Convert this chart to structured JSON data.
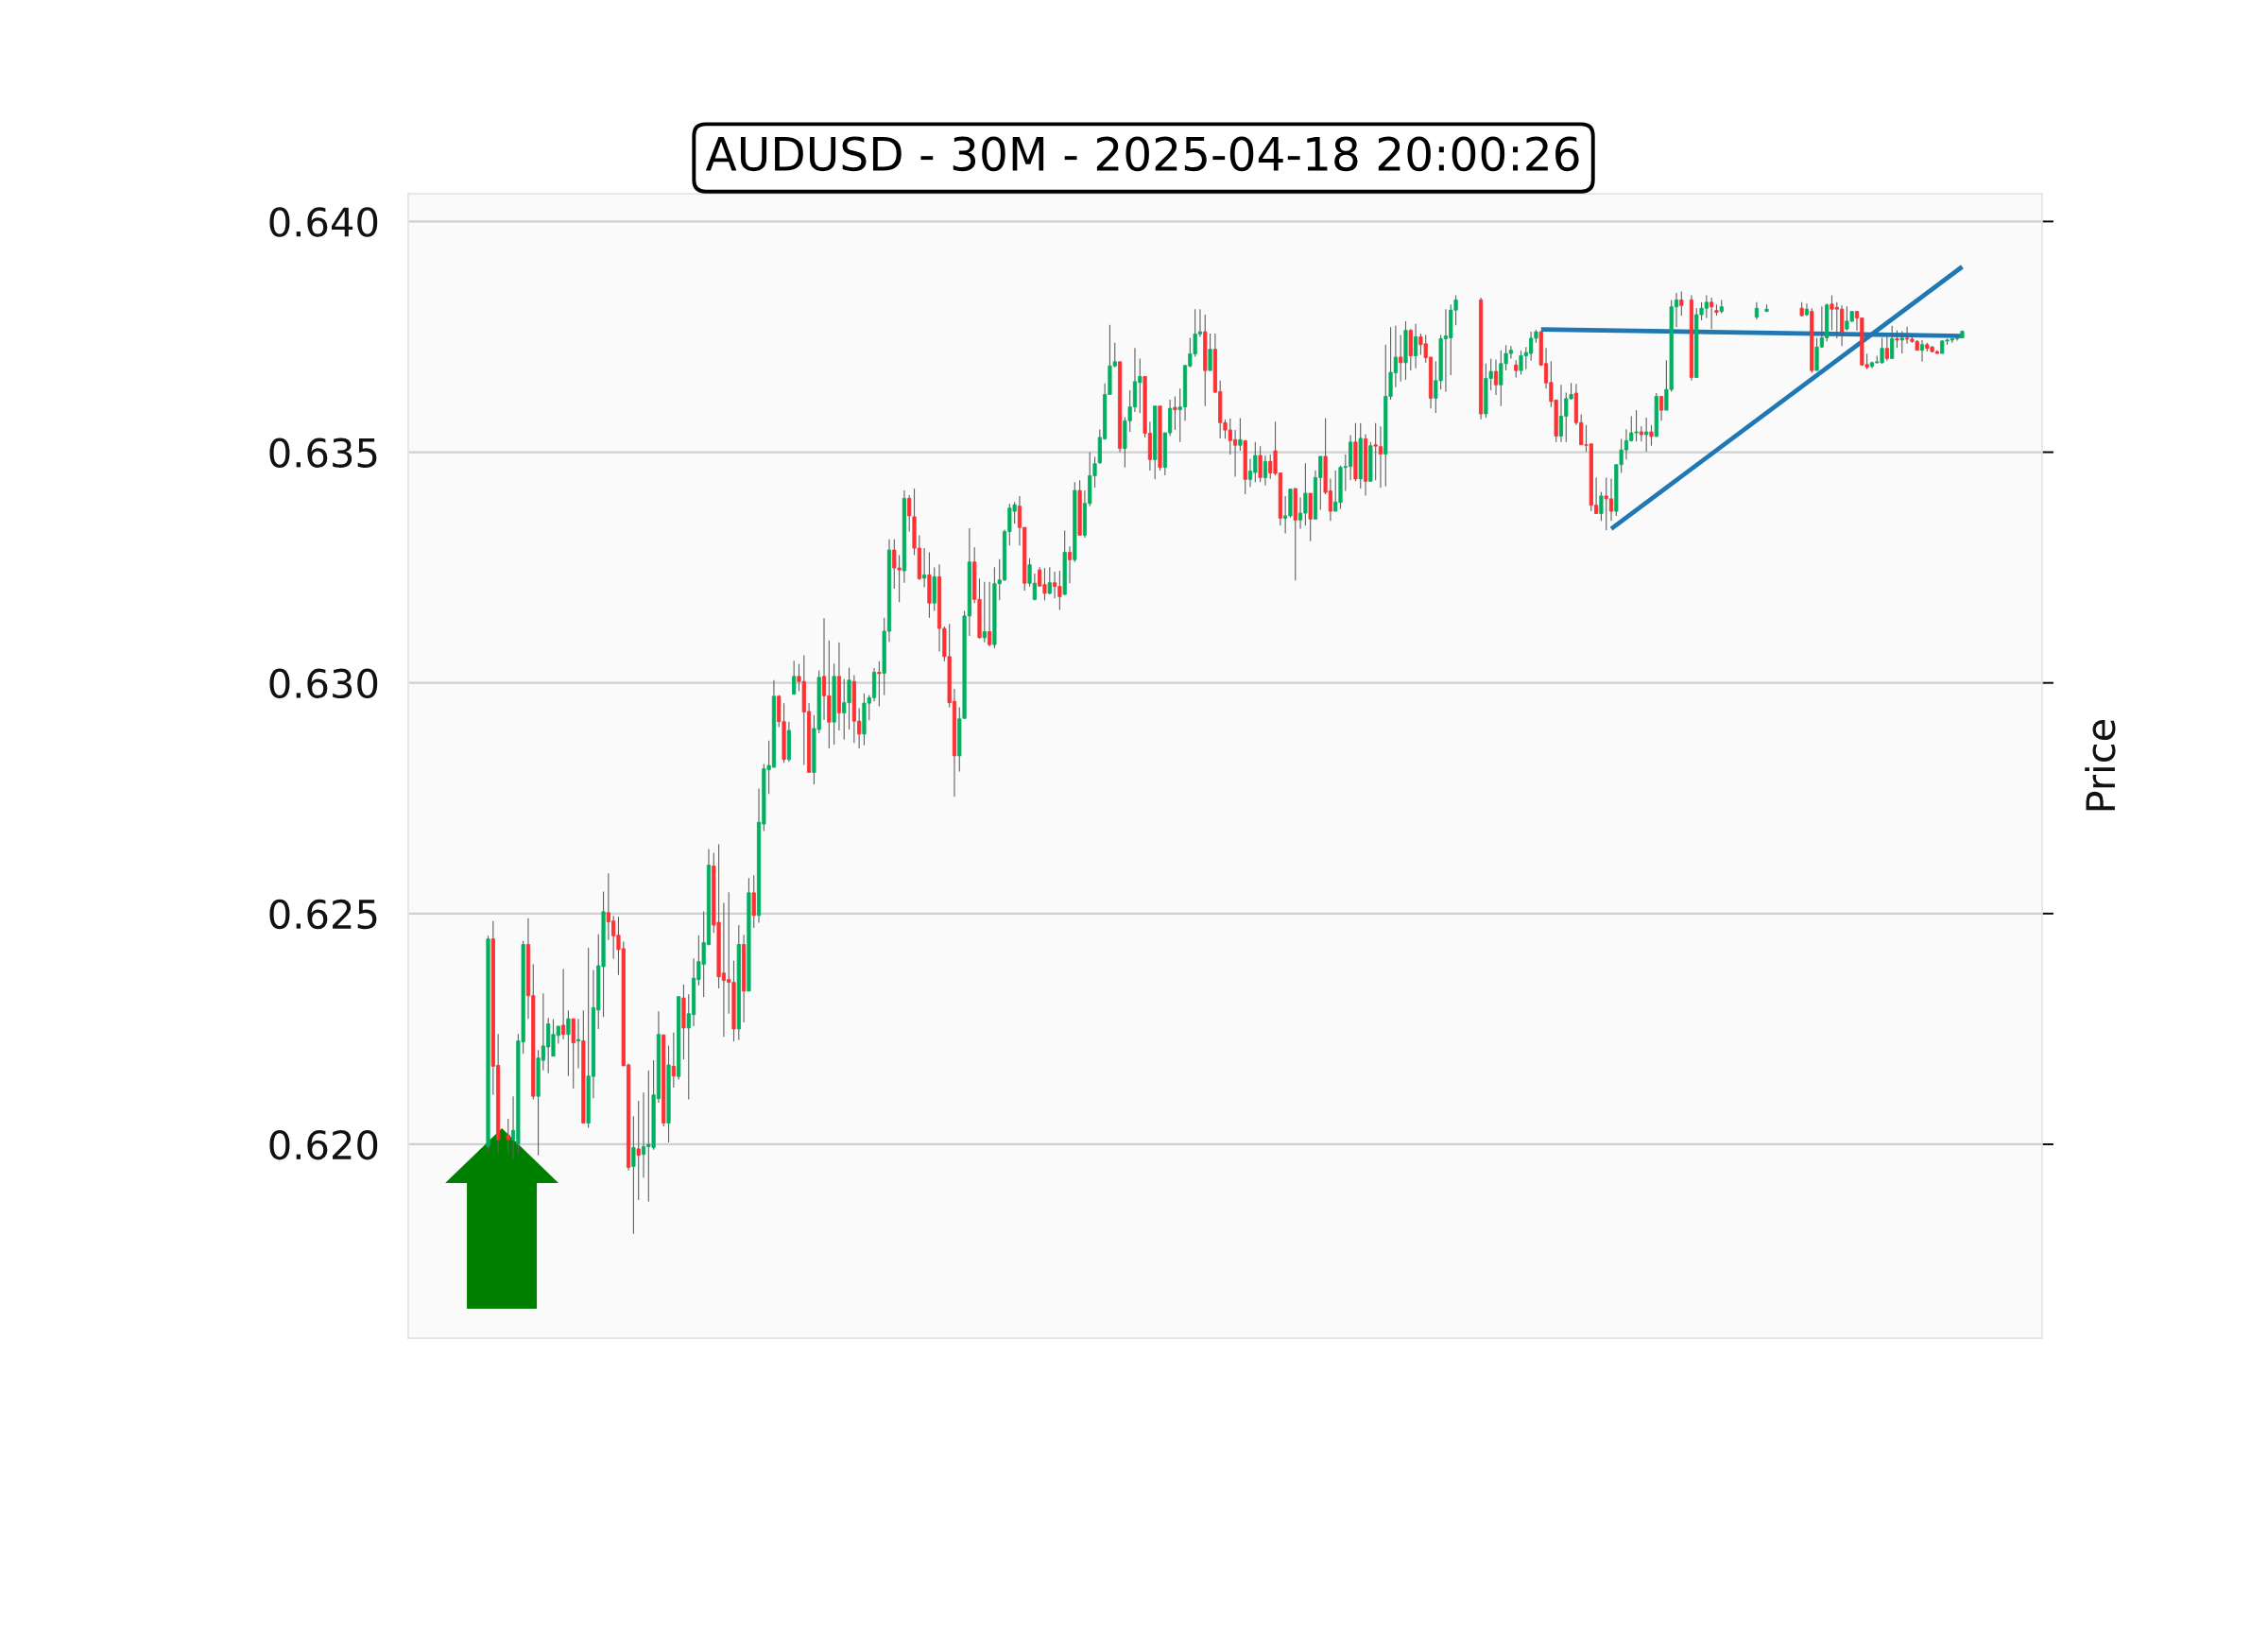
{
  "chart_data": {
    "type": "candlestick",
    "title": "AUDUSD - 30M - 2025-04-18 20:00:26",
    "ylabel": "Price",
    "categories": [
      null,
      null,
      null,
      null,
      null,
      null,
      null,
      null,
      null,
      null,
      null,
      null,
      null,
      null,
      null,
      null,
      null,
      null,
      null,
      null,
      null,
      null,
      null,
      null,
      null,
      null,
      null,
      null,
      null,
      null,
      null,
      null,
      null,
      null,
      null,
      null,
      null,
      null,
      null,
      null,
      null,
      null,
      null,
      null,
      null,
      null,
      null,
      null,
      null,
      null,
      null,
      null,
      null,
      null,
      null,
      null,
      null,
      null,
      null,
      null,
      null,
      null,
      null,
      null,
      null,
      null,
      null,
      null,
      null,
      null,
      null,
      null,
      null,
      null,
      null,
      null,
      null,
      null,
      null,
      null,
      null,
      null,
      null,
      null,
      null,
      null,
      null,
      null,
      null,
      null,
      null,
      null,
      null,
      null,
      null,
      null,
      null,
      null,
      null,
      null,
      null,
      null,
      null,
      null,
      null,
      null,
      null,
      null,
      null,
      null,
      null,
      null,
      null,
      null,
      null,
      null,
      null,
      null,
      null,
      null,
      null,
      null,
      null,
      null,
      null,
      null,
      null,
      null,
      null,
      null,
      null,
      null,
      null,
      null,
      null,
      null,
      null,
      null,
      null,
      null,
      null,
      null,
      null,
      null,
      null,
      null,
      null,
      null,
      null,
      null,
      null,
      null,
      null,
      null,
      null,
      null,
      null,
      null,
      null,
      null,
      null,
      null,
      null,
      null,
      null,
      null,
      null,
      null,
      null,
      null,
      null,
      null,
      null,
      null,
      null,
      null,
      null,
      null,
      null,
      null,
      null,
      null,
      null,
      null,
      null,
      null,
      null,
      null,
      null,
      null,
      null,
      null,
      null,
      null,
      null,
      null,
      null,
      null,
      null,
      null,
      null,
      null,
      null,
      null,
      null,
      null,
      null,
      null,
      null,
      null,
      null,
      null,
      null,
      null,
      null,
      null,
      null,
      null,
      null,
      null,
      null,
      null,
      null,
      null,
      null,
      null,
      null,
      null,
      null,
      null,
      null,
      null,
      null,
      null,
      null,
      null,
      null,
      null,
      null,
      null,
      null,
      null,
      null,
      null,
      null,
      null,
      null,
      null,
      null,
      null,
      null,
      null,
      null,
      null,
      null,
      null,
      null,
      null,
      null,
      null,
      null,
      null,
      null,
      null,
      null,
      null,
      null,
      null,
      null,
      null,
      null,
      null,
      null,
      null,
      null,
      null,
      null,
      null,
      null,
      null,
      null,
      null,
      null,
      null,
      null,
      null,
      null,
      null,
      null,
      null,
      null,
      null,
      null,
      null,
      null
    ],
    "ohlc": [
      [
        0.61995,
        0.62452,
        0.61985,
        0.62445
      ],
      [
        0.62445,
        0.62484,
        0.62107,
        0.62169
      ],
      [
        0.62171,
        0.62239,
        0.6198,
        0.6201
      ],
      null,
      [
        0.6202,
        0.62055,
        0.6198,
        0.6201
      ],
      [
        0.6201,
        0.62104,
        0.6197,
        0.6203
      ],
      [
        0.62,
        0.62239,
        0.6198,
        0.62224
      ],
      [
        0.62222,
        0.62441,
        0.62196,
        0.62433
      ],
      [
        0.62433,
        0.6249,
        0.62272,
        0.62322
      ],
      [
        0.62322,
        0.6239,
        0.62097,
        0.62104
      ],
      [
        0.62104,
        0.62204,
        0.61976,
        0.62187
      ],
      [
        0.62182,
        0.62327,
        0.6216,
        0.62213
      ],
      [
        0.62211,
        0.62274,
        0.62154,
        0.62261
      ],
      [
        0.62191,
        0.62271,
        0.62191,
        0.62238
      ],
      [
        0.62236,
        0.62256,
        0.62218,
        0.62256
      ],
      [
        0.62258,
        0.6238,
        0.62228,
        0.62238
      ],
      [
        0.62238,
        0.6229,
        0.62148,
        0.62272
      ],
      [
        0.62272,
        0.62272,
        0.62121,
        0.6222
      ],
      [
        0.62224,
        0.62272,
        0.62165,
        0.62227
      ],
      [
        0.62224,
        0.6229,
        0.62046,
        0.62046
      ],
      [
        0.62046,
        0.62426,
        0.62036,
        0.62148
      ],
      [
        0.62147,
        0.62378,
        0.621,
        0.62296
      ],
      [
        0.62291,
        0.62455,
        0.6225,
        0.62387
      ],
      [
        0.62385,
        0.62548,
        0.62276,
        0.62504
      ],
      [
        0.62502,
        0.62587,
        0.62443,
        0.62482
      ],
      [
        0.62484,
        0.62495,
        0.62402,
        0.62452
      ],
      [
        0.62453,
        0.62493,
        0.62367,
        0.62422
      ],
      [
        0.62424,
        0.62439,
        0.6217,
        0.6217
      ],
      [
        0.62172,
        0.62175,
        0.61943,
        0.6195
      ],
      [
        0.61952,
        0.62061,
        0.61806,
        0.61993
      ],
      [
        0.6199,
        0.62094,
        0.61879,
        0.61976
      ],
      [
        0.61978,
        0.62112,
        0.61928,
        0.61995
      ],
      [
        0.61995,
        0.6216,
        0.61876,
        0.62
      ],
      [
        0.61993,
        0.62182,
        0.61988,
        0.62107
      ],
      [
        0.62099,
        0.62288,
        0.6209,
        0.62238
      ],
      [
        0.62237,
        0.62237,
        0.62039,
        0.62046
      ],
      [
        0.62046,
        0.62214,
        0.62004,
        0.62172
      ],
      [
        0.62169,
        0.62242,
        0.62123,
        0.62148
      ],
      [
        0.62147,
        0.6232,
        0.6214,
        0.6232
      ],
      [
        0.62317,
        0.62346,
        0.62184,
        0.62252
      ],
      [
        0.62252,
        0.62325,
        0.62097,
        0.62283
      ],
      [
        0.62281,
        0.62403,
        0.62256,
        0.6236
      ],
      [
        0.62357,
        0.62453,
        0.62344,
        0.62396
      ],
      [
        0.6239,
        0.62505,
        0.62319,
        0.62437
      ],
      [
        0.62433,
        0.6264,
        0.62431,
        0.62605
      ],
      [
        0.62603,
        0.62632,
        0.62458,
        0.62475
      ],
      [
        0.62481,
        0.6265,
        0.62338,
        0.62363
      ],
      [
        0.62371,
        0.62523,
        0.62233,
        0.62355
      ],
      [
        0.62357,
        0.62546,
        0.62283,
        0.62351
      ],
      [
        0.62351,
        0.62398,
        0.62223,
        0.6225
      ],
      [
        0.6225,
        0.62475,
        0.62226,
        0.62433
      ],
      [
        0.62433,
        0.62454,
        0.62264,
        0.62332
      ],
      [
        0.62332,
        0.62577,
        0.62332,
        0.62545
      ],
      [
        0.62545,
        0.62583,
        0.62469,
        0.62496
      ],
      [
        0.62496,
        0.62771,
        0.6248,
        0.62698
      ],
      [
        0.62694,
        0.62824,
        0.62679,
        0.62814
      ],
      [
        0.62812,
        0.62875,
        0.62759,
        0.62821
      ],
      [
        0.62817,
        0.63006,
        0.62817,
        0.62971
      ],
      [
        0.62971,
        0.62974,
        0.62904,
        0.62916
      ],
      [
        0.62916,
        0.62956,
        0.62827,
        0.62834
      ],
      [
        0.62834,
        0.62916,
        0.62829,
        0.62897
      ],
      [
        0.62976,
        0.63048,
        0.62974,
        0.63014
      ],
      [
        0.63014,
        0.63041,
        0.62982,
        0.63003
      ],
      [
        0.63003,
        0.6306,
        0.62822,
        0.62937
      ],
      [
        0.62938,
        0.62956,
        0.62806,
        0.62806
      ],
      [
        0.62806,
        0.6293,
        0.6278,
        0.62901
      ],
      [
        0.62899,
        0.63027,
        0.62891,
        0.63012
      ],
      [
        0.63014,
        0.6314,
        0.6292,
        0.62972
      ],
      [
        0.62972,
        0.63092,
        0.62858,
        0.62915
      ],
      [
        0.62915,
        0.63042,
        0.62866,
        0.63014
      ],
      [
        0.63014,
        0.63088,
        0.62897,
        0.62935
      ],
      [
        0.62935,
        0.63008,
        0.62877,
        0.62957
      ],
      [
        0.62957,
        0.63033,
        0.62899,
        0.63006
      ],
      [
        0.63003,
        0.63017,
        0.6287,
        0.62917
      ],
      [
        0.62917,
        0.62945,
        0.62858,
        0.62889
      ],
      [
        0.62889,
        0.62977,
        0.62865,
        0.62956
      ],
      [
        0.62956,
        0.62974,
        0.62919,
        0.62968
      ],
      [
        0.62968,
        0.63032,
        0.6296,
        0.63023
      ],
      [
        0.63023,
        0.63047,
        0.62949,
        0.6302
      ],
      [
        0.63021,
        0.63141,
        0.62974,
        0.63112
      ],
      [
        0.63112,
        0.63311,
        0.63089,
        0.63288
      ],
      [
        0.63288,
        0.63311,
        0.63204,
        0.63249
      ],
      [
        0.63249,
        0.63277,
        0.63175,
        0.63245
      ],
      [
        0.63243,
        0.63417,
        0.63217,
        0.634
      ],
      [
        0.634,
        0.63407,
        0.63328,
        0.63362
      ],
      [
        0.6336,
        0.63421,
        0.63277,
        0.63292
      ],
      [
        0.63292,
        0.6332,
        0.63223,
        0.63226
      ],
      [
        0.63227,
        0.63292,
        0.63207,
        0.63234
      ],
      [
        0.63234,
        0.63283,
        0.63141,
        0.63173
      ],
      [
        0.63173,
        0.6325,
        0.63156,
        0.6323
      ],
      [
        0.6323,
        0.63257,
        0.63068,
        0.63118
      ],
      [
        0.63118,
        0.63122,
        0.63047,
        0.63057
      ],
      [
        0.63057,
        0.63128,
        0.62947,
        0.62957
      ],
      [
        0.6296,
        0.62987,
        0.62753,
        0.62842
      ],
      [
        0.62842,
        0.62947,
        0.62808,
        0.62922
      ],
      [
        0.62923,
        0.63156,
        0.62923,
        0.63145
      ],
      [
        0.63145,
        0.63335,
        0.63102,
        0.63262
      ],
      [
        0.63262,
        0.63294,
        0.63173,
        0.63181
      ],
      [
        0.63181,
        0.63226,
        0.63096,
        0.63098
      ],
      [
        0.63098,
        0.63219,
        0.63088,
        0.63111
      ],
      [
        0.63111,
        0.63219,
        0.63079,
        0.63083
      ],
      [
        0.63083,
        0.63251,
        0.63075,
        0.63215
      ],
      [
        0.63215,
        0.63268,
        0.63179,
        0.63223
      ],
      [
        0.63223,
        0.63332,
        0.63221,
        0.63328
      ],
      [
        0.63328,
        0.63388,
        0.63298,
        0.63379
      ],
      [
        0.63372,
        0.63392,
        0.63345,
        0.63386
      ],
      [
        0.63383,
        0.63405,
        0.63298,
        0.63337
      ],
      [
        0.63337,
        0.63337,
        0.632,
        0.63216
      ],
      [
        0.63216,
        0.6327,
        0.63209,
        0.63256
      ],
      [
        0.63181,
        0.63237,
        0.63179,
        0.63216
      ],
      [
        0.63245,
        0.63251,
        0.63209,
        0.6321
      ],
      [
        0.63213,
        0.63249,
        0.63179,
        0.63194
      ],
      [
        0.63194,
        0.63251,
        0.63192,
        0.63217
      ],
      [
        0.63217,
        0.63241,
        0.63183,
        0.63209
      ],
      [
        0.63209,
        0.63243,
        0.63158,
        0.63187
      ],
      [
        0.63192,
        0.6333,
        0.6319,
        0.63283
      ],
      [
        0.63283,
        0.63296,
        0.63216,
        0.63267
      ],
      [
        0.63267,
        0.63435,
        0.63262,
        0.63417
      ],
      [
        0.63417,
        0.63439,
        0.6332,
        0.6332
      ],
      [
        0.6332,
        0.63417,
        0.63315,
        0.63389
      ],
      [
        0.63389,
        0.635,
        0.63383,
        0.63449
      ],
      [
        0.63449,
        0.6349,
        0.63423,
        0.63475
      ],
      [
        0.63477,
        0.63549,
        0.63475,
        0.63532
      ],
      [
        0.63529,
        0.63649,
        0.63527,
        0.63625
      ],
      [
        0.63625,
        0.63776,
        0.63625,
        0.63687
      ],
      [
        0.63687,
        0.63737,
        0.63684,
        0.63696
      ],
      [
        0.63696,
        0.63696,
        0.635,
        0.63508
      ],
      [
        0.63508,
        0.63576,
        0.63467,
        0.63568
      ],
      [
        0.63568,
        0.63634,
        0.63544,
        0.63598
      ],
      [
        0.63598,
        0.63726,
        0.63587,
        0.63653
      ],
      [
        0.63651,
        0.63703,
        0.63585,
        0.63664
      ],
      [
        0.63664,
        0.63664,
        0.63532,
        0.63541
      ],
      [
        0.63541,
        0.63566,
        0.6346,
        0.63484
      ],
      [
        0.63484,
        0.636,
        0.63441,
        0.636
      ],
      [
        0.636,
        0.636,
        0.6346,
        0.63467
      ],
      [
        0.63467,
        0.63542,
        0.6345,
        0.63542
      ],
      [
        0.63542,
        0.63614,
        0.63535,
        0.63595
      ],
      [
        0.63597,
        0.63621,
        0.63548,
        0.63592
      ],
      [
        0.63592,
        0.63638,
        0.63522,
        0.63598
      ],
      [
        0.63598,
        0.63688,
        0.63568,
        0.63688
      ],
      [
        0.63687,
        0.63748,
        0.63684,
        0.63713
      ],
      [
        0.63713,
        0.6381,
        0.63707,
        0.63756
      ],
      [
        0.63756,
        0.6381,
        0.6375,
        0.63761
      ],
      [
        0.63761,
        0.63798,
        0.636,
        0.63677
      ],
      [
        0.63677,
        0.63757,
        0.63677,
        0.63723
      ],
      [
        0.63723,
        0.63757,
        0.63628,
        0.6363
      ],
      [
        0.63631,
        0.63655,
        0.6353,
        0.63564
      ],
      [
        0.63564,
        0.63571,
        0.63529,
        0.63548
      ],
      [
        0.63548,
        0.63573,
        0.63495,
        0.63525
      ],
      [
        0.63527,
        0.63548,
        0.63447,
        0.63515
      ],
      [
        0.63515,
        0.63574,
        0.63503,
        0.63527
      ],
      [
        0.63525,
        0.63525,
        0.63409,
        0.63441
      ],
      [
        0.63441,
        0.63486,
        0.63425,
        0.63459
      ],
      [
        0.63456,
        0.63522,
        0.63435,
        0.63493
      ],
      [
        0.63493,
        0.63513,
        0.63435,
        0.63445
      ],
      [
        0.63445,
        0.63493,
        0.63428,
        0.6348
      ],
      [
        0.6348,
        0.63495,
        0.63442,
        0.63455
      ],
      [
        0.63503,
        0.63566,
        0.6345,
        0.63454
      ],
      [
        0.63455,
        0.63455,
        0.63341,
        0.63357
      ],
      [
        0.63357,
        0.63405,
        0.63324,
        0.63362
      ],
      [
        0.63362,
        0.6342,
        0.63358,
        0.6342
      ],
      [
        0.63421,
        0.63423,
        0.63222,
        0.63353
      ],
      [
        0.63353,
        0.63402,
        0.63334,
        0.63368
      ],
      [
        0.63368,
        0.63476,
        0.63341,
        0.63411
      ],
      [
        0.63411,
        0.63411,
        0.63307,
        0.63355
      ],
      [
        0.63355,
        0.6346,
        0.63355,
        0.63445
      ],
      [
        0.63445,
        0.63491,
        0.63375,
        0.63491
      ],
      [
        0.63491,
        0.63574,
        0.63409,
        0.63413
      ],
      [
        0.63416,
        0.63443,
        0.63351,
        0.63372
      ],
      [
        0.63372,
        0.6346,
        0.63372,
        0.63392
      ],
      [
        0.63391,
        0.63471,
        0.63377,
        0.63467
      ],
      [
        0.63467,
        0.63495,
        0.63416,
        0.63469
      ],
      [
        0.63469,
        0.63537,
        0.63439,
        0.63522
      ],
      [
        0.63522,
        0.63563,
        0.63437,
        0.63442
      ],
      [
        0.63442,
        0.63563,
        0.63421,
        0.6353
      ],
      [
        0.63529,
        0.63539,
        0.63406,
        0.63437
      ],
      [
        0.63437,
        0.63522,
        0.63437,
        0.63514
      ],
      [
        0.63516,
        0.63563,
        0.63439,
        0.63513
      ],
      [
        0.63512,
        0.63556,
        0.63423,
        0.63496
      ],
      [
        0.63496,
        0.63733,
        0.63426,
        0.63621
      ],
      [
        0.63621,
        0.63771,
        0.63614,
        0.63673
      ],
      [
        0.63672,
        0.63774,
        0.63641,
        0.63706
      ],
      [
        0.63706,
        0.63754,
        0.63653,
        0.63694
      ],
      [
        0.63694,
        0.63784,
        0.63657,
        0.63764
      ],
      [
        0.63764,
        0.63767,
        0.63677,
        0.63709
      ],
      [
        0.63709,
        0.63778,
        0.63682,
        0.6375
      ],
      [
        0.6375,
        0.63757,
        0.63711,
        0.63733
      ],
      [
        0.63735,
        0.63754,
        0.63694,
        0.63705
      ],
      [
        0.63706,
        0.63706,
        0.63595,
        0.63617
      ],
      [
        0.63617,
        0.63697,
        0.63585,
        0.63655
      ],
      [
        0.63655,
        0.63754,
        0.63636,
        0.63746
      ],
      [
        0.63746,
        0.6381,
        0.63631,
        0.63752
      ],
      [
        0.63748,
        0.6382,
        0.63667,
        0.63808
      ],
      [
        0.63808,
        0.6384,
        0.63775,
        0.6383
      ],
      null,
      null,
      null,
      null,
      [
        0.6383,
        0.63835,
        0.63571,
        0.63583
      ],
      [
        0.63583,
        0.63692,
        0.63575,
        0.6366
      ],
      [
        0.6366,
        0.63703,
        0.63634,
        0.63675
      ],
      [
        0.63675,
        0.63701,
        0.63624,
        0.63646
      ],
      [
        0.63646,
        0.63721,
        0.636,
        0.63692
      ],
      [
        0.63692,
        0.63732,
        0.63677,
        0.63714
      ],
      [
        0.63714,
        0.6373,
        0.63703,
        0.63721
      ],
      [
        0.63689,
        0.63699,
        0.63662,
        0.63677
      ],
      [
        0.63677,
        0.6372,
        0.63668,
        0.63709
      ],
      [
        0.63709,
        0.63728,
        0.6368,
        0.63716
      ],
      [
        0.63714,
        0.63761,
        0.63698,
        0.63747
      ],
      [
        0.63747,
        0.63765,
        0.63737,
        0.63761
      ],
      [
        0.63761,
        0.63762,
        0.63687,
        0.63689
      ],
      [
        0.63692,
        0.63726,
        0.63638,
        0.6365
      ],
      [
        0.63651,
        0.63697,
        0.63598,
        0.6361
      ],
      [
        0.63613,
        0.63613,
        0.63522,
        0.63535
      ],
      [
        0.63535,
        0.63646,
        0.63522,
        0.63578
      ],
      [
        0.63578,
        0.63629,
        0.63522,
        0.63616
      ],
      [
        0.63616,
        0.6365,
        0.63614,
        0.63625
      ],
      [
        0.63628,
        0.63648,
        0.63559,
        0.63564
      ],
      [
        0.63564,
        0.63582,
        0.63516,
        0.63516
      ],
      [
        0.63516,
        0.63559,
        0.63501,
        0.63515
      ],
      [
        0.63518,
        0.63518,
        0.63372,
        0.63385
      ],
      [
        0.63385,
        0.63445,
        0.63367,
        0.63367
      ],
      [
        0.63367,
        0.63414,
        0.63351,
        0.63405
      ],
      [
        0.63405,
        0.63445,
        0.63331,
        0.63399
      ],
      [
        0.63399,
        0.63443,
        0.63351,
        0.63372
      ],
      [
        0.63372,
        0.63473,
        0.63362,
        0.63473
      ],
      [
        0.63473,
        0.63529,
        0.63455,
        0.63505
      ],
      [
        0.63505,
        0.6355,
        0.63484,
        0.63525
      ],
      [
        0.63525,
        0.63578,
        0.63523,
        0.63542
      ],
      [
        0.63542,
        0.63591,
        0.63523,
        0.63544
      ],
      [
        0.63544,
        0.63556,
        0.63523,
        0.63538
      ],
      [
        0.63538,
        0.63575,
        0.63501,
        0.63544
      ],
      [
        0.63544,
        0.63559,
        0.63514,
        0.63534
      ],
      [
        0.63534,
        0.63628,
        0.63534,
        0.63621
      ],
      [
        0.63621,
        0.63621,
        0.63568,
        0.63591
      ],
      [
        0.63591,
        0.63699,
        0.63591,
        0.63636
      ],
      [
        0.63636,
        0.6383,
        0.63631,
        0.63815
      ],
      [
        0.63815,
        0.63845,
        0.63771,
        0.6383
      ],
      [
        0.6383,
        0.63848,
        0.63796,
        0.63818
      ],
      null,
      [
        0.6383,
        0.6384,
        0.63655,
        0.63662
      ],
      [
        0.63662,
        0.63812,
        0.63662,
        0.63798
      ],
      [
        0.63798,
        0.63825,
        0.63786,
        0.63812
      ],
      [
        0.63812,
        0.6384,
        0.63791,
        0.63825
      ],
      [
        0.63825,
        0.63835,
        0.63767,
        0.63815
      ],
      [
        0.63807,
        0.6382,
        0.63796,
        0.63803
      ],
      [
        0.63805,
        0.6383,
        0.63801,
        0.63815
      ],
      null,
      null,
      null,
      null,
      null,
      null,
      [
        0.63793,
        0.63825,
        0.63788,
        0.63812
      ],
      null,
      [
        0.63805,
        0.6382,
        0.63804,
        0.6381
      ],
      null,
      null,
      null,
      null,
      null,
      null,
      [
        0.63812,
        0.63825,
        0.63794,
        0.63796
      ],
      [
        0.63798,
        0.63822,
        0.63795,
        0.6381
      ],
      [
        0.63805,
        0.63812,
        0.63672,
        0.63677
      ],
      [
        0.63677,
        0.63748,
        0.63677,
        0.63728
      ],
      [
        0.63728,
        0.63816,
        0.63726,
        0.63748
      ],
      [
        0.63748,
        0.63822,
        0.6374,
        0.63819
      ],
      [
        0.63821,
        0.6384,
        0.63764,
        0.6381
      ],
      [
        0.63814,
        0.63825,
        0.63747,
        0.6381
      ],
      [
        0.6381,
        0.63818,
        0.6373,
        0.63761
      ],
      [
        0.63767,
        0.63816,
        0.63764,
        0.63784
      ],
      [
        0.63784,
        0.63805,
        0.63782,
        0.63805
      ],
      [
        0.63805,
        0.63805,
        0.63764,
        0.63791
      ],
      [
        0.63791,
        0.63791,
        0.63687,
        0.63689
      ],
      [
        0.6369,
        0.63713,
        0.6368,
        0.63684
      ],
      [
        0.63686,
        0.63696,
        0.63682,
        0.63694
      ],
      [
        0.63694,
        0.63709,
        0.63692,
        0.63696
      ],
      [
        0.63694,
        0.63748,
        0.63692,
        0.63725
      ],
      [
        0.63725,
        0.6375,
        0.63698,
        0.63703
      ],
      [
        0.63703,
        0.63774,
        0.63703,
        0.63746
      ],
      [
        0.63746,
        0.63764,
        0.63726,
        0.63743
      ],
      [
        0.63743,
        0.63762,
        0.63714,
        0.63747
      ],
      [
        0.63747,
        0.63772,
        0.63735,
        0.63745
      ],
      [
        0.63745,
        0.63754,
        0.63737,
        0.6374
      ],
      [
        0.6374,
        0.63743,
        0.6372,
        0.63721
      ],
      [
        0.63721,
        0.63743,
        0.63696,
        0.63733
      ],
      [
        0.63733,
        0.63737,
        0.63718,
        0.63725
      ],
      [
        0.63728,
        0.6373,
        0.63716,
        0.63718
      ],
      [
        0.63718,
        0.63721,
        0.63713,
        0.63714
      ],
      [
        0.63714,
        0.63743,
        0.63714,
        0.63741
      ],
      [
        0.63741,
        0.63746,
        0.63733,
        0.63743
      ],
      [
        0.63743,
        0.63748,
        0.63737,
        0.63746
      ],
      [
        0.63746,
        0.63752,
        0.63742,
        0.63748
      ],
      [
        0.63748,
        0.63764,
        0.63748,
        0.63762
      ]
    ],
    "series": [
      {
        "type": "line",
        "color": "#1f77b4",
        "values": [
          null,
          null,
          null,
          null,
          null,
          null,
          null,
          null,
          null,
          null,
          null,
          null,
          null,
          null,
          null,
          null,
          null,
          null,
          null,
          null,
          null,
          null,
          null,
          null,
          null,
          null,
          null,
          null,
          null,
          null,
          null,
          null,
          null,
          null,
          null,
          null,
          null,
          null,
          null,
          null,
          null,
          null,
          null,
          null,
          null,
          null,
          null,
          null,
          null,
          null,
          null,
          null,
          null,
          null,
          null,
          null,
          null,
          null,
          null,
          null,
          null,
          null,
          null,
          null,
          null,
          null,
          null,
          null,
          null,
          null,
          null,
          null,
          null,
          null,
          null,
          null,
          null,
          null,
          null,
          null,
          null,
          null,
          null,
          null,
          null,
          null,
          null,
          null,
          null,
          null,
          null,
          null,
          null,
          null,
          null,
          null,
          null,
          null,
          null,
          null,
          null,
          null,
          null,
          null,
          null,
          null,
          null,
          null,
          null,
          null,
          null,
          null,
          null,
          null,
          null,
          null,
          null,
          null,
          null,
          null,
          null,
          null,
          null,
          null,
          null,
          null,
          null,
          null,
          null,
          null,
          null,
          null,
          null,
          null,
          null,
          null,
          null,
          null,
          null,
          null,
          null,
          null,
          null,
          null,
          null,
          null,
          null,
          null,
          null,
          null,
          null,
          null,
          null,
          null,
          null,
          null,
          null,
          null,
          null,
          null,
          null,
          null,
          null,
          null,
          null,
          null,
          null,
          null,
          null,
          null,
          null,
          null,
          null,
          null,
          null,
          null,
          null,
          null,
          null,
          null,
          null,
          null,
          null,
          null,
          null,
          null,
          null,
          null,
          null,
          null,
          null,
          null,
          null,
          null,
          null,
          null,
          null,
          null,
          null,
          null,
          null,
          null,
          null,
          null,
          null,
          null,
          null,
          null,
          null,
          null,
          0.63766,
          null,
          null,
          null,
          null,
          null,
          null,
          null,
          null,
          null,
          null,
          null,
          null,
          null,
          null,
          null,
          null,
          null,
          null,
          null,
          null,
          null,
          null,
          null,
          null,
          null,
          null,
          null,
          null,
          null,
          null,
          null,
          null,
          null,
          null,
          null,
          null,
          null,
          null,
          null,
          null,
          null,
          null,
          null,
          null,
          null,
          null,
          null,
          null,
          null,
          null,
          null,
          null,
          null,
          null,
          null,
          null,
          null,
          null,
          null,
          null,
          null,
          null,
          null,
          null,
          null,
          null,
          null,
          null,
          null,
          null,
          null,
          null,
          null,
          null,
          null,
          null,
          null,
          null,
          null,
          null,
          null,
          null,
          null,
          0.63752
        ]
      },
      {
        "type": "line",
        "color": "#1f77b4",
        "values": [
          null,
          null,
          null,
          null,
          null,
          null,
          null,
          null,
          null,
          null,
          null,
          null,
          null,
          null,
          null,
          null,
          null,
          null,
          null,
          null,
          null,
          null,
          null,
          null,
          null,
          null,
          null,
          null,
          null,
          null,
          null,
          null,
          null,
          null,
          null,
          null,
          null,
          null,
          null,
          null,
          null,
          null,
          null,
          null,
          null,
          null,
          null,
          null,
          null,
          null,
          null,
          null,
          null,
          null,
          null,
          null,
          null,
          null,
          null,
          null,
          null,
          null,
          null,
          null,
          null,
          null,
          null,
          null,
          null,
          null,
          null,
          null,
          null,
          null,
          null,
          null,
          null,
          null,
          null,
          null,
          null,
          null,
          null,
          null,
          null,
          null,
          null,
          null,
          null,
          null,
          null,
          null,
          null,
          null,
          null,
          null,
          null,
          null,
          null,
          null,
          null,
          null,
          null,
          null,
          null,
          null,
          null,
          null,
          null,
          null,
          null,
          null,
          null,
          null,
          null,
          null,
          null,
          null,
          null,
          null,
          null,
          null,
          null,
          null,
          null,
          null,
          null,
          null,
          null,
          null,
          null,
          null,
          null,
          null,
          null,
          null,
          null,
          null,
          null,
          null,
          null,
          null,
          null,
          null,
          null,
          null,
          null,
          null,
          null,
          null,
          null,
          null,
          null,
          null,
          null,
          null,
          null,
          null,
          null,
          null,
          null,
          null,
          null,
          null,
          null,
          null,
          null,
          null,
          null,
          null,
          null,
          null,
          null,
          null,
          null,
          null,
          null,
          null,
          null,
          null,
          null,
          null,
          null,
          null,
          null,
          null,
          null,
          null,
          null,
          null,
          null,
          null,
          null,
          null,
          null,
          null,
          null,
          null,
          null,
          null,
          null,
          null,
          null,
          null,
          null,
          null,
          null,
          null,
          null,
          null,
          null,
          null,
          null,
          null,
          null,
          null,
          null,
          null,
          null,
          null,
          null,
          null,
          null,
          null,
          0.63334,
          null,
          null,
          null,
          null,
          null,
          null,
          null,
          null,
          null,
          null,
          null,
          null,
          null,
          null,
          null,
          null,
          null,
          null,
          null,
          null,
          null,
          null,
          null,
          null,
          null,
          null,
          null,
          null,
          null,
          null,
          null,
          null,
          null,
          null,
          null,
          null,
          null,
          null,
          null,
          null,
          null,
          null,
          null,
          null,
          null,
          null,
          null,
          null,
          null,
          null,
          null,
          null,
          null,
          null,
          null,
          null,
          null,
          null,
          null,
          null,
          null,
          null,
          null,
          null,
          null,
          null,
          null,
          null,
          null,
          0.63902
        ]
      }
    ],
    "ylim": [
      0.6158,
      0.6406
    ],
    "yticks": [
      {
        "value": 0.62,
        "label": "0.620"
      },
      {
        "value": 0.625,
        "label": "0.625"
      },
      {
        "value": 0.63,
        "label": "0.630"
      },
      {
        "value": 0.635,
        "label": "0.635"
      },
      {
        "value": 0.64,
        "label": "0.640"
      }
    ],
    "grid": "y",
    "tick_labels": "y"
  }
}
